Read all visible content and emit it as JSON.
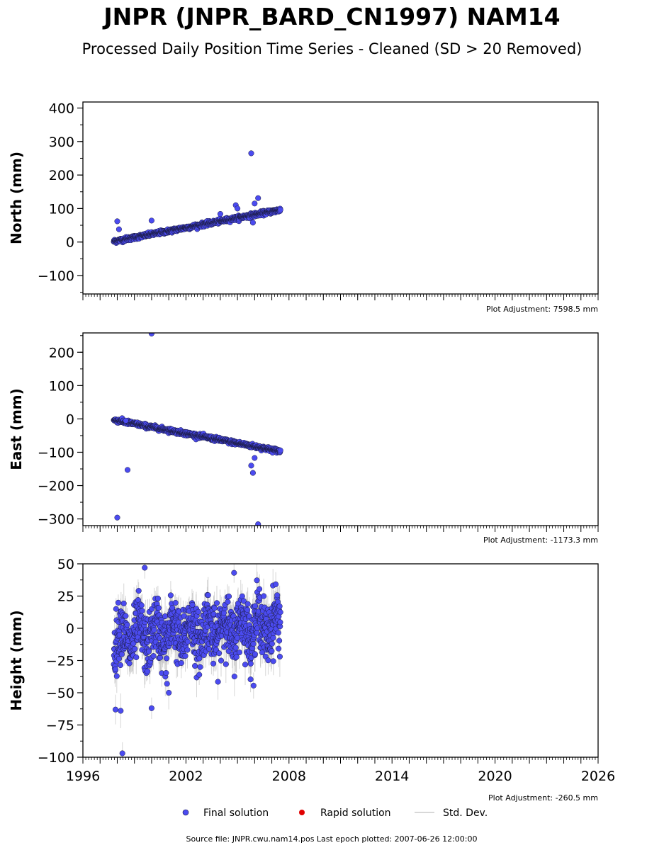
{
  "title": "JNPR (JNPR_BARD_CN1997) NAM14",
  "subtitle": "Processed Daily Position Time Series - Cleaned (SD > 20 Removed)",
  "source_line": "Source file: JNPR.cwu.nam14.pos  Last epoch plotted: 2007-06-26 12:00:00",
  "legend": {
    "final": "Final solution",
    "rapid": "Rapid solution",
    "std": "Std. Dev."
  },
  "colors": {
    "final": "#4b4bf0",
    "final_edge": "#1a1a40",
    "rapid": "#e00000",
    "std": "#bbbbbb"
  },
  "chart_data": [
    {
      "type": "scatter",
      "ylabel": "North (mm)",
      "xlim": [
        1996,
        2026
      ],
      "ylim": [
        -155,
        418
      ],
      "yticks": [
        -100,
        0,
        100,
        200,
        300,
        400
      ],
      "adjustment": "Plot Adjustment: 7598.5 mm",
      "trend": {
        "start": [
          1997.8,
          2
        ],
        "end": [
          2007.5,
          96
        ]
      },
      "scatter_noise": 5,
      "outliers": [
        [
          1998.0,
          62
        ],
        [
          1998.1,
          38
        ],
        [
          2000.0,
          64
        ],
        [
          2004.0,
          84
        ],
        [
          2004.9,
          110
        ],
        [
          2005.0,
          100
        ],
        [
          2005.8,
          265
        ],
        [
          2006.0,
          115
        ],
        [
          2006.2,
          131
        ],
        [
          2005.9,
          58
        ]
      ]
    },
    {
      "type": "scatter",
      "ylabel": "East (mm)",
      "xlim": [
        1996,
        2026
      ],
      "ylim": [
        -320,
        258
      ],
      "yticks": [
        -300,
        -200,
        -100,
        0,
        100,
        200
      ],
      "adjustment": "Plot Adjustment: -1173.3 mm",
      "trend": {
        "start": [
          1997.8,
          -3
        ],
        "end": [
          2007.5,
          -97
        ]
      },
      "scatter_noise": 5,
      "outliers": [
        [
          1998.0,
          -296
        ],
        [
          1998.6,
          -153
        ],
        [
          2000.0,
          256
        ],
        [
          2005.8,
          -140
        ],
        [
          2005.9,
          -162
        ],
        [
          2006.0,
          -117
        ],
        [
          2006.2,
          -316
        ],
        [
          1998.5,
          -5
        ]
      ]
    },
    {
      "type": "scatter",
      "ylabel": "Height (mm)",
      "xlim": [
        1996,
        2026
      ],
      "ylim": [
        -100,
        50
      ],
      "yticks": [
        -100,
        -75,
        -50,
        -25,
        0,
        25,
        50
      ],
      "xticks": [
        1996,
        2002,
        2008,
        2014,
        2020,
        2026
      ],
      "adjustment": "Plot Adjustment: -260.5 mm",
      "trend": {
        "start": [
          1997.8,
          -8
        ],
        "end": [
          2007.5,
          3
        ]
      },
      "scatter_noise": 14,
      "outliers": [
        [
          1998.3,
          -97
        ],
        [
          1998.2,
          -64
        ],
        [
          1997.9,
          -63
        ],
        [
          1999.6,
          47
        ],
        [
          2000.0,
          -62
        ],
        [
          2004.8,
          43
        ],
        [
          2001.0,
          -50
        ],
        [
          2000.9,
          -43
        ]
      ]
    }
  ]
}
